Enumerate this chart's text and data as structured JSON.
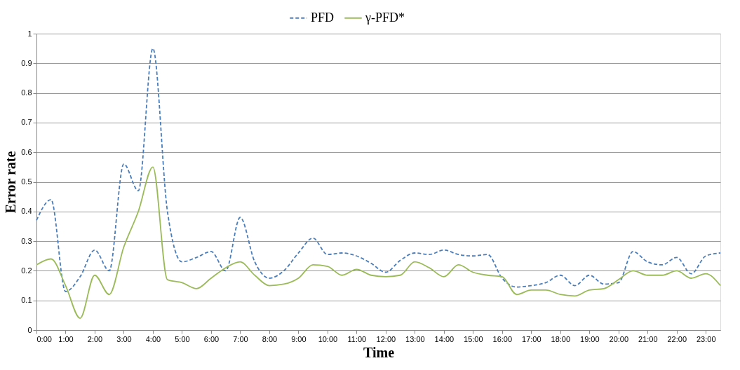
{
  "chart_data": {
    "type": "line",
    "xlabel": "Time",
    "ylabel": "Error rate",
    "x": [
      0,
      0.5,
      1,
      1.5,
      2,
      2.5,
      3,
      3.5,
      4,
      4.5,
      5,
      5.5,
      6,
      6.5,
      7,
      7.5,
      8,
      8.5,
      9,
      9.5,
      10,
      10.5,
      11,
      11.5,
      12,
      12.5,
      13,
      13.5,
      14,
      14.5,
      15,
      15.5,
      16,
      16.5,
      17,
      17.5,
      18,
      18.5,
      19,
      19.5,
      20,
      20.5,
      21,
      21.5,
      22,
      22.5,
      23,
      23.5
    ],
    "series": [
      {
        "name": "PFD",
        "color": "#4a7ebb",
        "line_style": "dashed",
        "values": [
          0.37,
          0.44,
          0.13,
          0.18,
          0.27,
          0.2,
          0.56,
          0.47,
          0.95,
          0.4,
          0.23,
          0.245,
          0.265,
          0.2,
          0.38,
          0.23,
          0.175,
          0.2,
          0.26,
          0.31,
          0.255,
          0.26,
          0.25,
          0.225,
          0.195,
          0.235,
          0.26,
          0.255,
          0.27,
          0.255,
          0.25,
          0.255,
          0.175,
          0.145,
          0.15,
          0.16,
          0.185,
          0.15,
          0.185,
          0.155,
          0.16,
          0.265,
          0.23,
          0.22,
          0.245,
          0.19,
          0.25,
          0.26
        ]
      },
      {
        "name": "γ-PFD*",
        "color": "#9bbb59",
        "line_style": "solid",
        "values": [
          0.22,
          0.24,
          0.15,
          0.04,
          0.185,
          0.12,
          0.28,
          0.4,
          0.55,
          0.17,
          0.16,
          0.14,
          0.175,
          0.21,
          0.23,
          0.185,
          0.15,
          0.155,
          0.175,
          0.22,
          0.215,
          0.185,
          0.205,
          0.185,
          0.18,
          0.185,
          0.23,
          0.21,
          0.18,
          0.22,
          0.195,
          0.185,
          0.18,
          0.12,
          0.135,
          0.135,
          0.12,
          0.115,
          0.135,
          0.14,
          0.17,
          0.2,
          0.185,
          0.185,
          0.2,
          0.175,
          0.19,
          0.15
        ]
      }
    ],
    "xlim": [
      0,
      23.5
    ],
    "xticks": [
      {
        "value": 0,
        "label": "0:00"
      },
      {
        "value": 1,
        "label": "1:00"
      },
      {
        "value": 2,
        "label": "2:00"
      },
      {
        "value": 3,
        "label": "3:00"
      },
      {
        "value": 4,
        "label": "4:00"
      },
      {
        "value": 5,
        "label": "5:00"
      },
      {
        "value": 6,
        "label": "6:00"
      },
      {
        "value": 7,
        "label": "7:00"
      },
      {
        "value": 8,
        "label": "8:00"
      },
      {
        "value": 9,
        "label": "9:00"
      },
      {
        "value": 10,
        "label": "10:00"
      },
      {
        "value": 11,
        "label": "11:00"
      },
      {
        "value": 12,
        "label": "12:00"
      },
      {
        "value": 13,
        "label": "13:00"
      },
      {
        "value": 14,
        "label": "14:00"
      },
      {
        "value": 15,
        "label": "15:00"
      },
      {
        "value": 16,
        "label": "16:00"
      },
      {
        "value": 17,
        "label": "17:00"
      },
      {
        "value": 18,
        "label": "18:00"
      },
      {
        "value": 19,
        "label": "19:00"
      },
      {
        "value": 20,
        "label": "20:00"
      },
      {
        "value": 21,
        "label": "21:00"
      },
      {
        "value": 22,
        "label": "22:00"
      },
      {
        "value": 23,
        "label": "23:00"
      }
    ],
    "ylim": [
      0,
      1
    ],
    "yticks": [
      0,
      0.1,
      0.2,
      0.3,
      0.4,
      0.5,
      0.6,
      0.7,
      0.8,
      0.9,
      1
    ],
    "grid": "y",
    "legend": "top",
    "marker": "none"
  }
}
